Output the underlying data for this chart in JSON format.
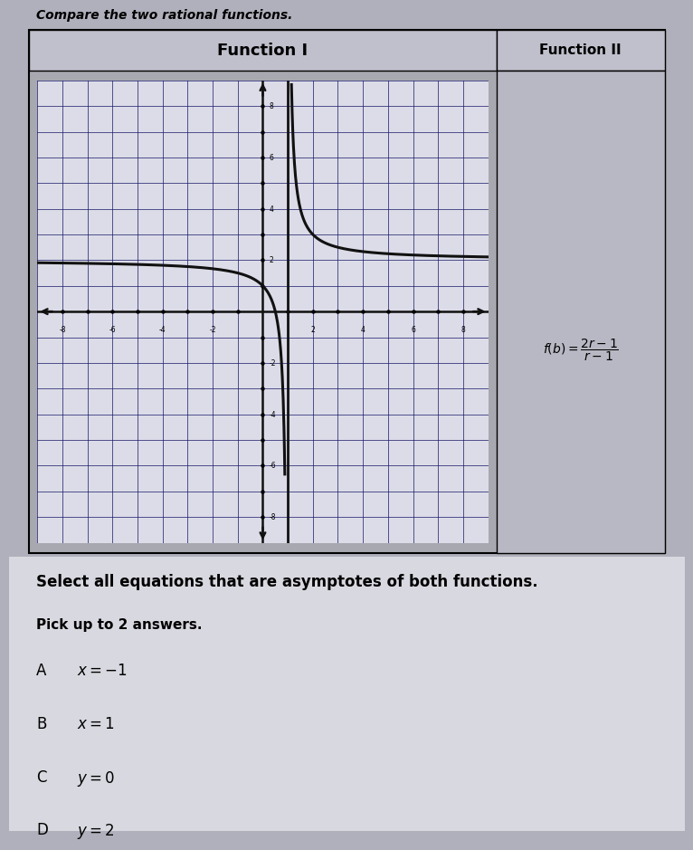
{
  "title": "Compare the two rational functions.",
  "function1_title": "Function I",
  "function2_title": "Function II",
  "question": "Select all equations that are asymptotes of both functions.",
  "subquestion": "Pick up to 2 answers.",
  "answers": [
    {
      "label": "A",
      "text": "x = -1"
    },
    {
      "label": "B",
      "text": "x = 1"
    },
    {
      "label": "C",
      "text": "y = 0"
    },
    {
      "label": "D",
      "text": "y = 2"
    }
  ],
  "graph_xlim": [
    -9,
    9
  ],
  "graph_ylim": [
    -9,
    9
  ],
  "outer_bg": "#a8a8b0",
  "graph_bg": "#dcdce8",
  "grid_color": "#1a1a6a",
  "curve_color": "#111111",
  "axis_color": "#111111",
  "header_bg": "#c0c0cc",
  "page_bg": "#b0b0bc",
  "answer_bg": "#d8d8e0",
  "func2_bg": "#b8b8c4"
}
